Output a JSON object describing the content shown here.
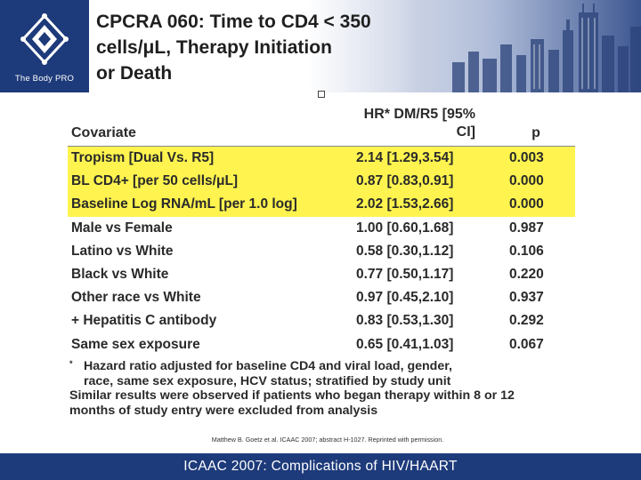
{
  "logo": {
    "text": "The Body PRO"
  },
  "slide": {
    "title_lines": [
      "CPCRA 060: Time to CD4 < 350",
      "cells/μL, Therapy Initiation",
      "or Death"
    ]
  },
  "table": {
    "headers": {
      "covariate": "Covariate",
      "hr_line1": "HR* DM/R5 [95%",
      "hr_line2": "CI]",
      "p": "p"
    },
    "highlight_color": "#fff44f",
    "rows": [
      {
        "covariate": "Tropism [Dual Vs. R5]",
        "hr": "2.14 [1.29,3.54]",
        "p": "0.003",
        "highlight": true
      },
      {
        "covariate": "BL CD4+ [per 50 cells/μL]",
        "hr": "0.87 [0.83,0.91]",
        "p": "0.000",
        "highlight": true
      },
      {
        "covariate": "Baseline Log RNA/mL [per 1.0 log]",
        "hr": "2.02 [1.53,2.66]",
        "p": "0.000",
        "highlight": true
      },
      {
        "covariate": "Male vs Female",
        "hr": "1.00 [0.60,1.68]",
        "p": "0.987",
        "highlight": false
      },
      {
        "covariate": "Latino vs White",
        "hr": "0.58 [0.30,1.12]",
        "p": "0.106",
        "highlight": false
      },
      {
        "covariate": "Black vs White",
        "hr": "0.77 [0.50,1.17]",
        "p": "0.220",
        "highlight": false
      },
      {
        "covariate": "Other race vs White",
        "hr": "0.97 [0.45,2.10]",
        "p": "0.937",
        "highlight": false
      },
      {
        "covariate": "+ Hepatitis C antibody",
        "hr": "0.83 [0.53,1.30]",
        "p": "0.292",
        "highlight": false
      },
      {
        "covariate": "Same sex exposure",
        "hr": "0.65 [0.41,1.03]",
        "p": "0.067",
        "highlight": false
      }
    ]
  },
  "footnotes": {
    "marker": "*",
    "line1": "Hazard ratio adjusted for baseline CD4 and viral load, gender,",
    "line2": "race, same sex exposure, HCV status; stratified by study unit",
    "line3": "Similar results were observed if patients who began therapy within 8 or 12",
    "line4": "months of study entry were excluded from analysis"
  },
  "citation": "Matthew B. Goetz et al. ICAAC 2007; abstract H-1027. Reprinted with permission.",
  "footer": {
    "text": "ICAAC 2007: Complications of HIV/HAART"
  },
  "colors": {
    "brand_navy": "#1d3a7a"
  }
}
